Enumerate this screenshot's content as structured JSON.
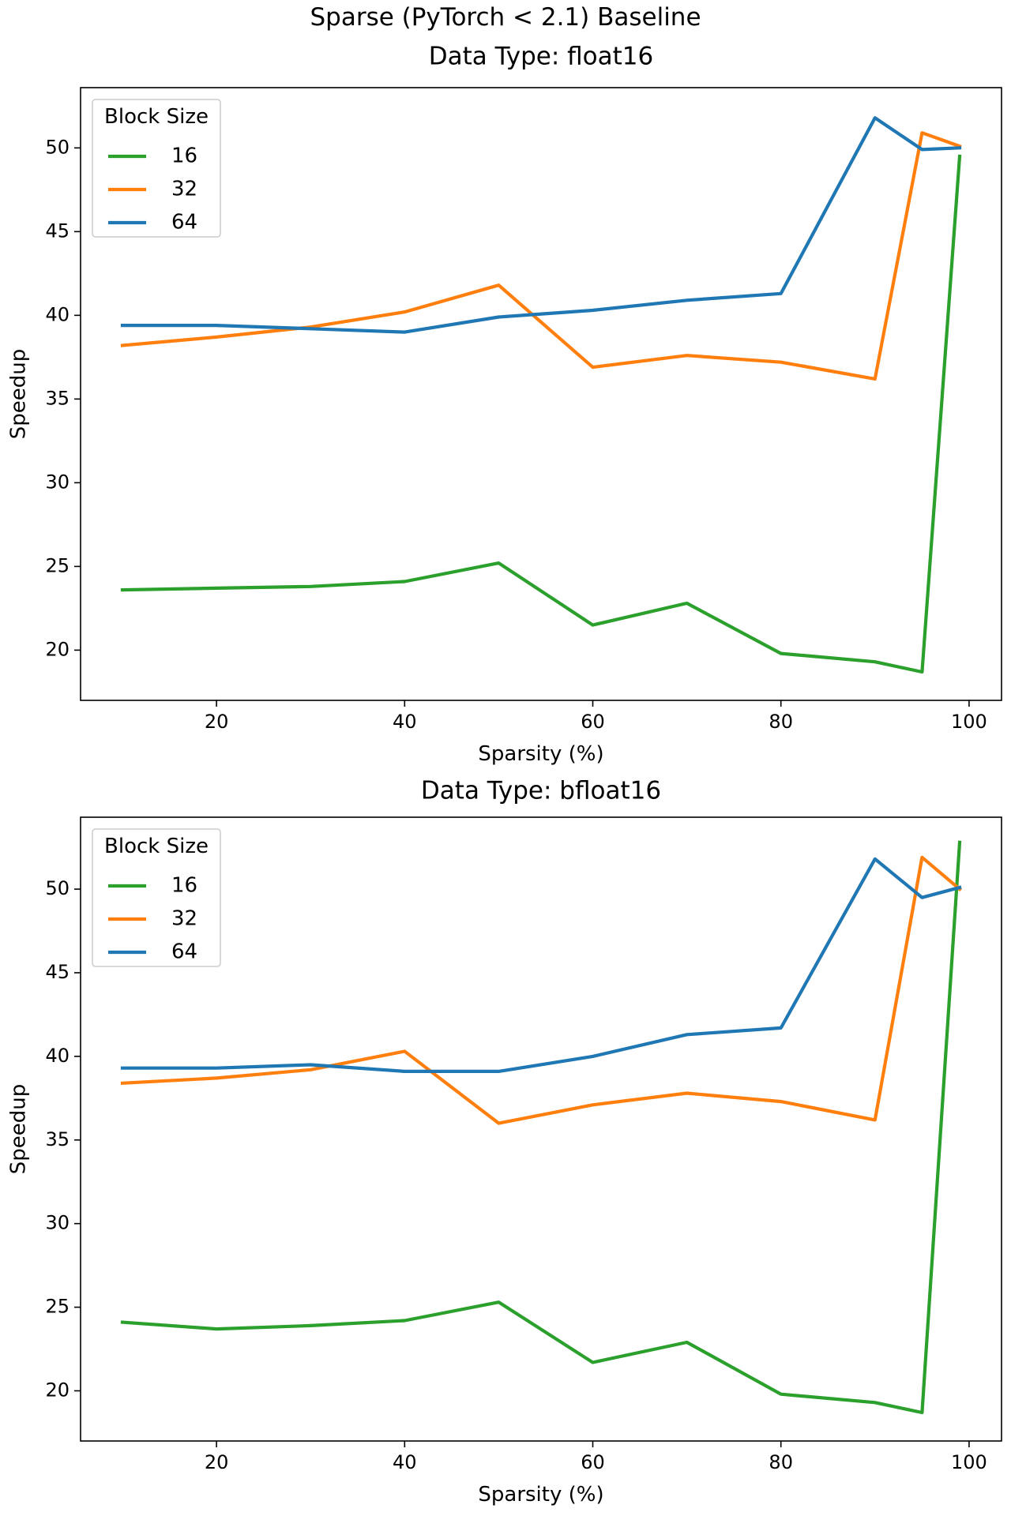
{
  "figure": {
    "title": "Sparse (PyTorch < 2.1) Baseline"
  },
  "chart_data": [
    {
      "type": "line",
      "title": "Data Type: float16",
      "xlabel": "Sparsity (%)",
      "ylabel": "Speedup",
      "xlim": [
        5.55,
        103.45
      ],
      "ylim": [
        17.0,
        53.6
      ],
      "xticks": [
        20,
        40,
        60,
        80,
        100
      ],
      "yticks": [
        20,
        25,
        30,
        35,
        40,
        45,
        50
      ],
      "grid": false,
      "legend": {
        "title": "Block Size",
        "placement": "upper-left"
      },
      "x": [
        10,
        20,
        30,
        40,
        50,
        60,
        70,
        80,
        90,
        95,
        99
      ],
      "series": [
        {
          "name": "16",
          "color": "#2ca02c",
          "values": [
            23.6,
            23.7,
            23.8,
            24.1,
            25.2,
            21.5,
            22.8,
            19.8,
            19.3,
            18.7,
            49.5
          ]
        },
        {
          "name": "32",
          "color": "#ff7f0e",
          "values": [
            38.2,
            38.7,
            39.3,
            40.2,
            41.8,
            36.9,
            37.6,
            37.2,
            36.2,
            50.9,
            50.1
          ]
        },
        {
          "name": "64",
          "color": "#1f77b4",
          "values": [
            39.4,
            39.4,
            39.2,
            39.0,
            39.9,
            40.3,
            40.9,
            41.3,
            51.8,
            49.9,
            50.0
          ]
        }
      ]
    },
    {
      "type": "line",
      "title": "Data Type: bfloat16",
      "xlabel": "Sparsity (%)",
      "ylabel": "Speedup",
      "xlim": [
        5.55,
        103.45
      ],
      "ylim": [
        17.0,
        54.3
      ],
      "xticks": [
        20,
        40,
        60,
        80,
        100
      ],
      "yticks": [
        20,
        25,
        30,
        35,
        40,
        45,
        50
      ],
      "grid": false,
      "legend": {
        "title": "Block Size",
        "placement": "upper-left"
      },
      "x": [
        10,
        20,
        30,
        40,
        50,
        60,
        70,
        80,
        90,
        95,
        99
      ],
      "series": [
        {
          "name": "16",
          "color": "#2ca02c",
          "values": [
            24.1,
            23.7,
            23.9,
            24.2,
            25.3,
            21.7,
            22.9,
            19.8,
            19.3,
            18.7,
            52.8
          ]
        },
        {
          "name": "32",
          "color": "#ff7f0e",
          "values": [
            38.4,
            38.7,
            39.2,
            40.3,
            36.0,
            37.1,
            37.8,
            37.3,
            36.2,
            51.9,
            50.0
          ]
        },
        {
          "name": "64",
          "color": "#1f77b4",
          "values": [
            39.3,
            39.3,
            39.5,
            39.1,
            39.1,
            40.0,
            41.3,
            41.7,
            51.8,
            49.5,
            50.1
          ]
        }
      ]
    }
  ]
}
